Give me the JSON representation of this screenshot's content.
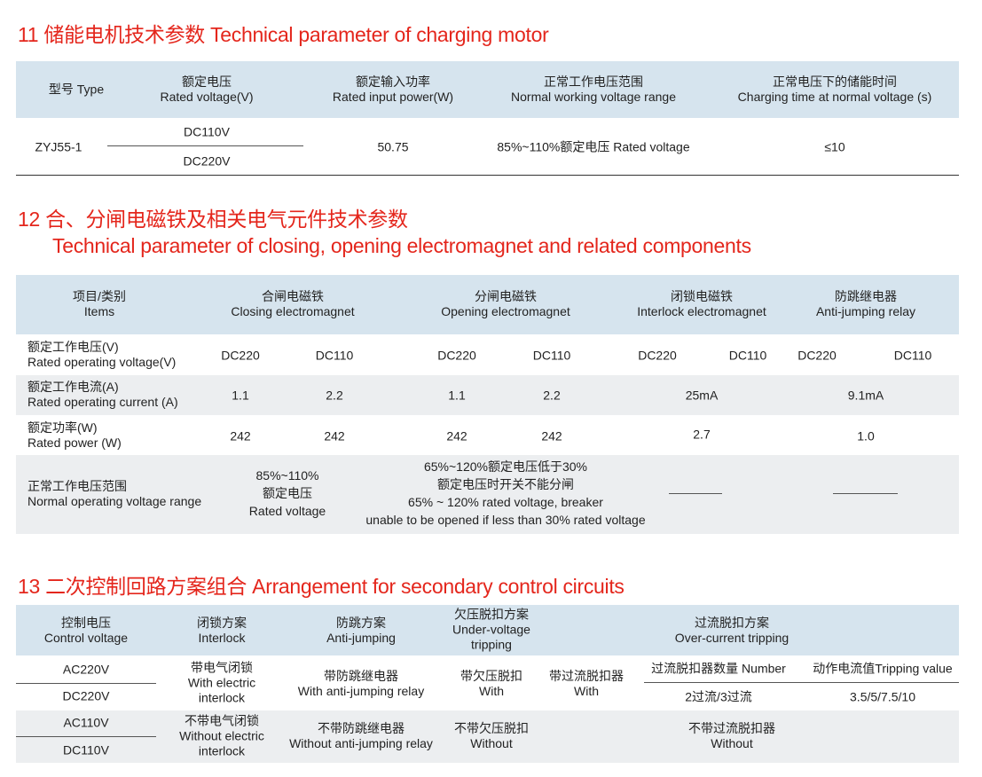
{
  "s11": {
    "title": "11  储能电机技术参数 Technical parameter of charging motor",
    "headers": [
      {
        "zh": "型号 Type",
        "en": ""
      },
      {
        "zh": "额定电压",
        "en": "Rated voltage(V)"
      },
      {
        "zh": "额定输入功率",
        "en": "Rated input power(W)"
      },
      {
        "zh": "正常工作电压范围",
        "en": "Normal working voltage range"
      },
      {
        "zh": "正常电压下的储能时间",
        "en": "Charging time at normal voltage (s)"
      }
    ],
    "row": {
      "type": "ZYJ55-1",
      "v1": "DC110V",
      "v2": "DC220V",
      "power": "50.75",
      "range": "85%~110%额定电压 Rated voltage",
      "time": "≤10"
    }
  },
  "s12": {
    "title_zh": "12  合、分闸电磁铁及相关电气元件技术参数",
    "title_en": "Technical parameter of closing, opening electromagnet and related components",
    "headers": [
      {
        "zh": "项目/类别",
        "en": "Items"
      },
      {
        "zh": "合闸电磁铁",
        "en": "Closing electromagnet"
      },
      {
        "zh": "分闸电磁铁",
        "en": "Opening electromagnet"
      },
      {
        "zh": "闭锁电磁铁",
        "en": "Interlock electromagnet"
      },
      {
        "zh": "防跳继电器",
        "en": "Anti-jumping relay"
      }
    ],
    "rows": [
      {
        "zh": "额定工作电压(V)",
        "en": "Rated operating voltage(V)",
        "vals": [
          "DC220",
          "DC110",
          "DC220",
          "DC110",
          "DC220",
          "DC110",
          "DC220",
          "DC110"
        ]
      },
      {
        "zh": "额定工作电流(A)",
        "en": "Rated operating current (A)",
        "vals": [
          "1.1",
          "2.2",
          "1.1",
          "2.2",
          "25mA",
          "9.1mA"
        ]
      },
      {
        "zh": "额定功率(W)",
        "en": "Rated power (W)",
        "vals": [
          "242",
          "242",
          "242",
          "242",
          "2.7",
          "1.0"
        ]
      },
      {
        "zh": "正常工作电压范围",
        "en": "Normal operating voltage range",
        "closing": [
          "85%~110%",
          "额定电压",
          "Rated voltage"
        ],
        "opening": [
          "65%~120%额定电压低于30%",
          "额定电压时开关不能分闸",
          "65% ~ 120% rated voltage, breaker",
          "unable to be opened if less than 30% rated voltage"
        ]
      }
    ]
  },
  "s13": {
    "title": "13  二次控制回路方案组合 Arrangement for secondary control circuits",
    "headers": [
      {
        "zh": "控制电压",
        "en": "Control voltage"
      },
      {
        "zh": "闭锁方案",
        "en": "Interlock"
      },
      {
        "zh": "防跳方案",
        "en": "Anti-jumping"
      },
      {
        "zh": "欠压脱扣方案",
        "en": "Under-voltage",
        "en2": "tripping"
      },
      {
        "zh": "过流脱扣方案",
        "en": "Over-current tripping"
      }
    ],
    "voltages": [
      "AC220V",
      "DC220V",
      "AC110V",
      "DC110V"
    ],
    "with": {
      "interlock": [
        "带电气闭锁",
        "With electric",
        "interlock"
      ],
      "anti": [
        "带防跳继电器",
        "With anti-jumping relay"
      ],
      "under": [
        "带欠压脱扣",
        "With"
      ],
      "over": [
        "带过流脱扣器",
        "With"
      ],
      "number_label": "过流脱扣器数量 Number",
      "tripping_label": "动作电流值Tripping value",
      "number_val": "2过流/3过流",
      "tripping_val": "3.5/5/7.5/10"
    },
    "without": {
      "interlock": [
        "不带电气闭锁",
        "Without electric",
        "interlock"
      ],
      "anti": [
        "不带防跳继电器",
        "Without anti-jumping relay"
      ],
      "under": [
        "不带欠压脱扣",
        "Without"
      ],
      "over": [
        "不带过流脱扣器",
        "Without"
      ]
    }
  }
}
